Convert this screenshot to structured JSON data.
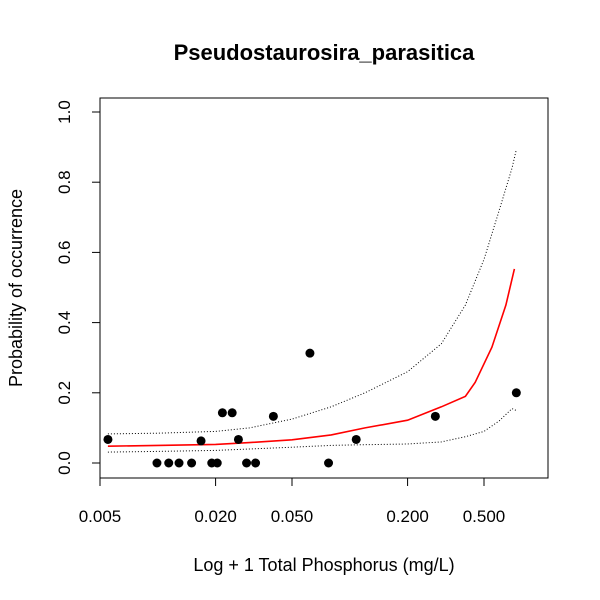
{
  "chart_data": {
    "type": "scatter",
    "title": "Pseudostaurosira_parasitica",
    "xlabel": "Log + 1 Total Phosphorus (mg/L)",
    "ylabel": "Probability of occurrence",
    "x_scale": "log",
    "xlim": [
      0.005,
      1.0
    ],
    "ylim": [
      0,
      1.0
    ],
    "x_ticks": [
      0.005,
      0.02,
      0.05,
      0.2,
      0.5
    ],
    "x_tick_labels": [
      "0.005",
      "0.020",
      "0.050",
      "0.200",
      "0.500"
    ],
    "y_ticks": [
      0,
      0.2,
      0.4,
      0.6,
      0.8,
      1.0
    ],
    "y_tick_labels": [
      "0.0",
      "0.2",
      "0.4",
      "0.6",
      "0.8",
      "1.0"
    ],
    "grid": false,
    "points": [
      {
        "x": 0.0055,
        "y": 0.067
      },
      {
        "x": 0.0099,
        "y": 0.0
      },
      {
        "x": 0.0114,
        "y": 0.0
      },
      {
        "x": 0.0129,
        "y": 0.0
      },
      {
        "x": 0.015,
        "y": 0.0
      },
      {
        "x": 0.0168,
        "y": 0.063
      },
      {
        "x": 0.0191,
        "y": 0.0
      },
      {
        "x": 0.0204,
        "y": 0.0
      },
      {
        "x": 0.0217,
        "y": 0.143
      },
      {
        "x": 0.0244,
        "y": 0.143
      },
      {
        "x": 0.0263,
        "y": 0.067
      },
      {
        "x": 0.029,
        "y": 0.0
      },
      {
        "x": 0.0323,
        "y": 0.0
      },
      {
        "x": 0.04,
        "y": 0.133
      },
      {
        "x": 0.062,
        "y": 0.313
      },
      {
        "x": 0.0775,
        "y": 0.0
      },
      {
        "x": 0.108,
        "y": 0.067
      },
      {
        "x": 0.279,
        "y": 0.133
      },
      {
        "x": 0.737,
        "y": 0.2
      }
    ],
    "fit_line": {
      "color": "#ff0000",
      "x": [
        0.0055,
        0.01,
        0.02,
        0.03,
        0.05,
        0.08,
        0.12,
        0.2,
        0.3,
        0.4,
        0.45,
        0.55,
        0.65,
        0.72
      ],
      "y": [
        0.048,
        0.05,
        0.053,
        0.058,
        0.066,
        0.08,
        0.1,
        0.122,
        0.16,
        0.19,
        0.23,
        0.33,
        0.45,
        0.553
      ]
    },
    "ci_upper": {
      "color": "#000000",
      "x": [
        0.0055,
        0.01,
        0.02,
        0.03,
        0.05,
        0.08,
        0.12,
        0.2,
        0.3,
        0.4,
        0.5,
        0.6,
        0.7,
        0.735
      ],
      "y": [
        0.083,
        0.085,
        0.09,
        0.1,
        0.125,
        0.16,
        0.2,
        0.26,
        0.34,
        0.45,
        0.58,
        0.72,
        0.84,
        0.89
      ]
    },
    "ci_lower": {
      "color": "#000000",
      "x": [
        0.0055,
        0.01,
        0.02,
        0.03,
        0.05,
        0.08,
        0.12,
        0.2,
        0.3,
        0.4,
        0.5,
        0.6,
        0.7,
        0.735
      ],
      "y": [
        0.031,
        0.033,
        0.036,
        0.04,
        0.045,
        0.05,
        0.052,
        0.054,
        0.06,
        0.075,
        0.09,
        0.12,
        0.155,
        0.15
      ]
    }
  }
}
